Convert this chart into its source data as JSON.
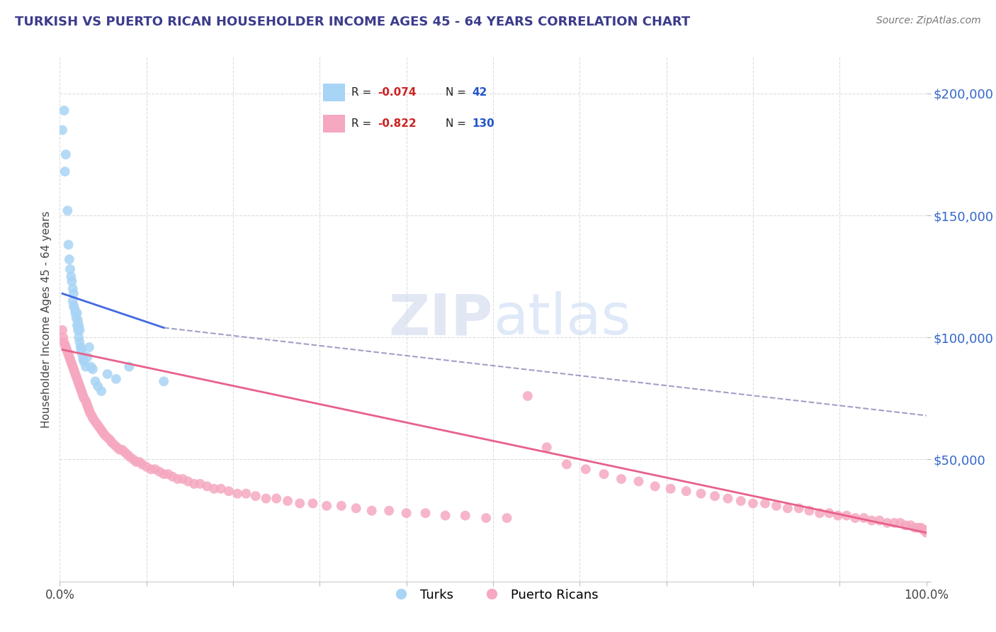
{
  "title": "TURKISH VS PUERTO RICAN HOUSEHOLDER INCOME AGES 45 - 64 YEARS CORRELATION CHART",
  "source": "Source: ZipAtlas.com",
  "ylabel": "Householder Income Ages 45 - 64 years",
  "xlim": [
    0.0,
    1.0
  ],
  "ylim": [
    0,
    215000
  ],
  "title_color": "#3c3c8c",
  "source_color": "#777777",
  "background_color": "#ffffff",
  "grid_color": "#dddddd",
  "watermark_text": "ZIPatlas",
  "turks_x": [
    0.003,
    0.005,
    0.006,
    0.007,
    0.009,
    0.01,
    0.011,
    0.012,
    0.013,
    0.014,
    0.015,
    0.015,
    0.016,
    0.016,
    0.017,
    0.018,
    0.019,
    0.02,
    0.02,
    0.021,
    0.021,
    0.022,
    0.022,
    0.023,
    0.023,
    0.024,
    0.025,
    0.026,
    0.027,
    0.028,
    0.03,
    0.032,
    0.034,
    0.036,
    0.038,
    0.041,
    0.044,
    0.048,
    0.055,
    0.065,
    0.08,
    0.12
  ],
  "turks_y": [
    185000,
    193000,
    168000,
    175000,
    152000,
    138000,
    132000,
    128000,
    125000,
    123000,
    120000,
    115000,
    113000,
    118000,
    112000,
    110000,
    108000,
    105000,
    110000,
    103000,
    107000,
    100000,
    105000,
    98000,
    103000,
    96000,
    95000,
    93000,
    91000,
    90000,
    88000,
    92000,
    96000,
    88000,
    87000,
    82000,
    80000,
    78000,
    85000,
    83000,
    88000,
    82000
  ],
  "pr_x": [
    0.003,
    0.004,
    0.005,
    0.006,
    0.007,
    0.008,
    0.009,
    0.01,
    0.011,
    0.012,
    0.013,
    0.014,
    0.015,
    0.016,
    0.017,
    0.018,
    0.019,
    0.02,
    0.021,
    0.022,
    0.023,
    0.024,
    0.025,
    0.026,
    0.027,
    0.028,
    0.03,
    0.031,
    0.032,
    0.033,
    0.034,
    0.035,
    0.037,
    0.038,
    0.04,
    0.042,
    0.044,
    0.046,
    0.048,
    0.05,
    0.052,
    0.055,
    0.058,
    0.06,
    0.063,
    0.066,
    0.069,
    0.072,
    0.075,
    0.078,
    0.081,
    0.085,
    0.088,
    0.092,
    0.095,
    0.1,
    0.105,
    0.11,
    0.115,
    0.12,
    0.125,
    0.13,
    0.136,
    0.142,
    0.148,
    0.155,
    0.162,
    0.17,
    0.178,
    0.186,
    0.195,
    0.205,
    0.215,
    0.226,
    0.238,
    0.25,
    0.263,
    0.277,
    0.292,
    0.308,
    0.325,
    0.342,
    0.36,
    0.38,
    0.4,
    0.422,
    0.445,
    0.468,
    0.492,
    0.516,
    0.54,
    0.562,
    0.585,
    0.607,
    0.628,
    0.648,
    0.668,
    0.687,
    0.705,
    0.723,
    0.74,
    0.756,
    0.771,
    0.786,
    0.8,
    0.814,
    0.827,
    0.84,
    0.853,
    0.865,
    0.877,
    0.888,
    0.898,
    0.908,
    0.918,
    0.928,
    0.937,
    0.946,
    0.955,
    0.963,
    0.97,
    0.976,
    0.982,
    0.987,
    0.991,
    0.994,
    0.997,
    0.999,
    1.0,
    1.0
  ],
  "pr_y": [
    103000,
    100000,
    98000,
    97000,
    96000,
    95000,
    94000,
    93000,
    92000,
    91000,
    90000,
    89000,
    88000,
    87000,
    86000,
    85000,
    84000,
    83000,
    82000,
    81000,
    80000,
    79000,
    78000,
    77000,
    76000,
    75000,
    74000,
    73000,
    72000,
    71000,
    70000,
    69000,
    68000,
    67000,
    66000,
    65000,
    64000,
    63000,
    62000,
    61000,
    60000,
    59000,
    58000,
    57000,
    56000,
    55000,
    54000,
    54000,
    53000,
    52000,
    51000,
    50000,
    49000,
    49000,
    48000,
    47000,
    46000,
    46000,
    45000,
    44000,
    44000,
    43000,
    42000,
    42000,
    41000,
    40000,
    40000,
    39000,
    38000,
    38000,
    37000,
    36000,
    36000,
    35000,
    34000,
    34000,
    33000,
    32000,
    32000,
    31000,
    31000,
    30000,
    29000,
    29000,
    28000,
    28000,
    27000,
    27000,
    26000,
    26000,
    76000,
    55000,
    48000,
    46000,
    44000,
    42000,
    41000,
    39000,
    38000,
    37000,
    36000,
    35000,
    34000,
    33000,
    32000,
    32000,
    31000,
    30000,
    30000,
    29000,
    28000,
    28000,
    27000,
    27000,
    26000,
    26000,
    25000,
    25000,
    24000,
    24000,
    24000,
    23000,
    23000,
    22000,
    22000,
    22000,
    21000,
    21000,
    21000,
    20000
  ],
  "turks_color": "#a8d4f5",
  "pr_color": "#f5a8c0",
  "turks_line_color": "#4169E1",
  "pr_line_color": "#e8608a",
  "dashed_line_color": "#8888bb",
  "legend_turks_label": "Turks",
  "legend_pr_label": "Puerto Ricans",
  "turks_R": "-0.074",
  "turks_N": "42",
  "pr_R": "-0.822",
  "pr_N": "130",
  "yticks": [
    0,
    50000,
    100000,
    150000,
    200000
  ],
  "ytick_labels": [
    "",
    "$50,000",
    "$100,000",
    "$150,000",
    "$200,000"
  ],
  "xtick_positions": [
    0.0,
    0.1,
    0.2,
    0.3,
    0.4,
    0.5,
    0.6,
    0.7,
    0.8,
    0.9,
    1.0
  ],
  "xtick_labels_show": [
    "0.0%",
    "",
    "",
    "",
    "",
    "",
    "",
    "",
    "",
    "",
    "100.0%"
  ],
  "turks_line_x0": 0.003,
  "turks_line_x1": 0.12,
  "turks_line_y0": 118000,
  "turks_line_y1": 104000,
  "dashed_line_x0": 0.12,
  "dashed_line_x1": 1.0,
  "dashed_line_y0": 104000,
  "dashed_line_y1": 68000,
  "pr_line_x0": 0.003,
  "pr_line_x1": 1.0,
  "pr_line_y0": 95000,
  "pr_line_y1": 20000
}
